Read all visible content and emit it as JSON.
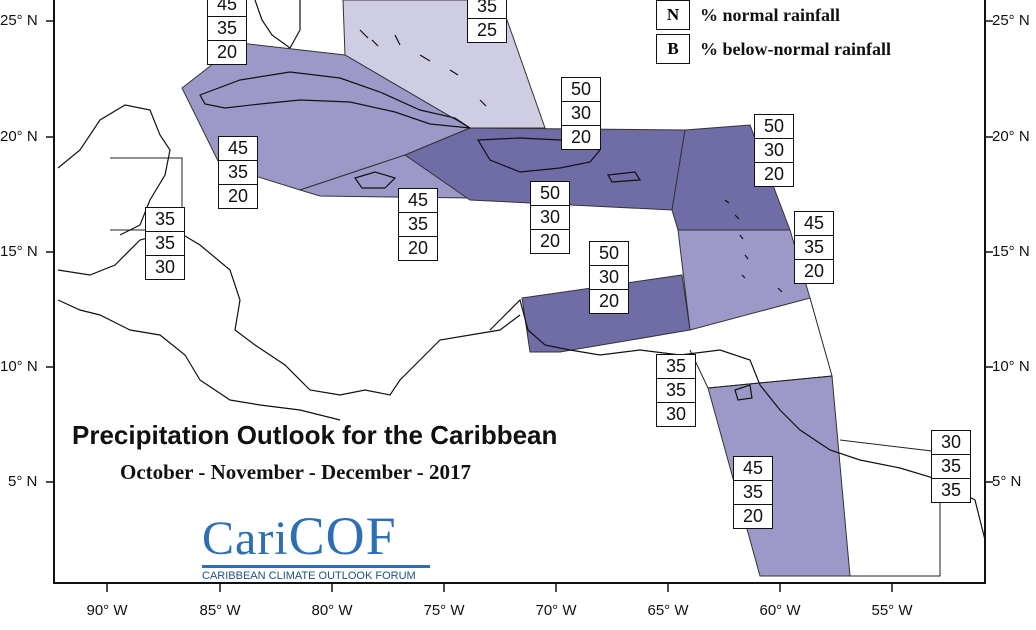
{
  "map": {
    "title": "Precipitation Outlook for the Caribbean",
    "subtitle": "October - November - December - 2017",
    "colors": {
      "water": "#ffffff",
      "land_outline": "#111111",
      "light": "#cfcde4",
      "medium": "#9c99c9",
      "dark": "#6f6ca6",
      "region_edge": "#333333"
    },
    "latitude_labels": [
      "25° N",
      "20° N",
      "15° N",
      "10° N",
      "5° N"
    ],
    "longitude_labels": [
      "90° W",
      "85° W",
      "80° W",
      "75° W",
      "70° W",
      "65° W",
      "60° W",
      "55° W"
    ]
  },
  "legend": [
    {
      "key": "N",
      "text": "% normal rainfall"
    },
    {
      "key": "B",
      "text": "% below-normal rainfall"
    }
  ],
  "zones": [
    {
      "name": "bahamas-top-left",
      "shade": "medium",
      "values": [
        "45",
        "35",
        "20"
      ]
    },
    {
      "name": "bahamas-top-right",
      "shade": "light",
      "values": [
        "35",
        "25"
      ]
    },
    {
      "name": "greater-antilles-mid",
      "shade": "medium",
      "values": [
        "50",
        "30",
        "20"
      ]
    },
    {
      "name": "cuba-west",
      "shade": "medium",
      "values": [
        "45",
        "35",
        "20"
      ]
    },
    {
      "name": "yucatan-belize",
      "shade": "none",
      "values": [
        "35",
        "35",
        "30"
      ]
    },
    {
      "name": "jamaica",
      "shade": "medium",
      "values": [
        "45",
        "35",
        "20"
      ]
    },
    {
      "name": "hispaniola",
      "shade": "dark",
      "values": [
        "50",
        "30",
        "20"
      ]
    },
    {
      "name": "leeward-islands",
      "shade": "dark",
      "values": [
        "50",
        "30",
        "20"
      ]
    },
    {
      "name": "windward-islands",
      "shade": "medium",
      "values": [
        "45",
        "35",
        "20"
      ]
    },
    {
      "name": "abc-islands",
      "shade": "dark",
      "values": [
        "50",
        "30",
        "20"
      ]
    },
    {
      "name": "trinidad",
      "shade": "none",
      "values": [
        "35",
        "35",
        "30"
      ]
    },
    {
      "name": "guyana",
      "shade": "medium",
      "values": [
        "45",
        "35",
        "20"
      ]
    },
    {
      "name": "french-guiana",
      "shade": "none",
      "values": [
        "30",
        "35",
        "35"
      ]
    }
  ],
  "logo": {
    "text_left": "Cari",
    "text_right": "COF",
    "tagline": "CARIBBEAN CLIMATE OUTLOOK FORUM"
  }
}
